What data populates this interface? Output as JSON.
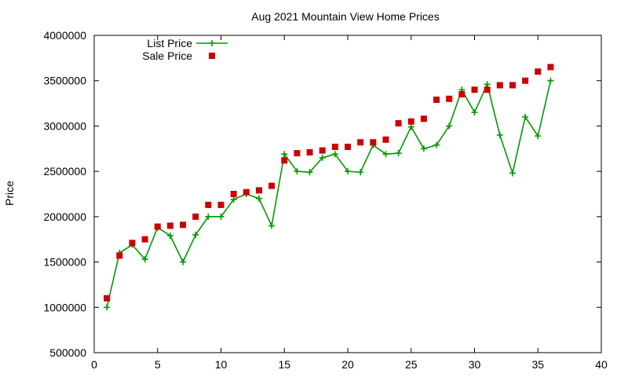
{
  "chart_data": {
    "type": "line",
    "title": "Aug 2021 Mountain View Home Prices",
    "xlabel": "",
    "ylabel": "Price",
    "xlim": [
      0,
      40
    ],
    "ylim": [
      500000,
      4000000
    ],
    "xticks": [
      0,
      5,
      10,
      15,
      20,
      25,
      30,
      35,
      40
    ],
    "yticks": [
      500000,
      1000000,
      1500000,
      2000000,
      2500000,
      3000000,
      3500000,
      4000000
    ],
    "grid": false,
    "legend_position": "top-left",
    "series": [
      {
        "name": "List Price",
        "style": "line-plus",
        "color": "#009900",
        "x": [
          1,
          2,
          3,
          4,
          5,
          6,
          7,
          8,
          9,
          10,
          11,
          12,
          13,
          14,
          15,
          16,
          17,
          18,
          19,
          20,
          21,
          22,
          23,
          24,
          25,
          26,
          27,
          28,
          29,
          30,
          31,
          32,
          33,
          34,
          35,
          36
        ],
        "y": [
          1000000,
          1600000,
          1690000,
          1530000,
          1880000,
          1790000,
          1500000,
          1800000,
          2000000,
          2000000,
          2190000,
          2250000,
          2200000,
          1900000,
          2690000,
          2500000,
          2490000,
          2650000,
          2690000,
          2500000,
          2490000,
          2790000,
          2690000,
          2700000,
          2990000,
          2750000,
          2790000,
          3000000,
          3400000,
          3150000,
          3460000,
          2900000,
          2480000,
          3100000,
          2890000,
          3500000
        ]
      },
      {
        "name": "Sale Price",
        "style": "square-points",
        "color": "#cc0000",
        "x": [
          1,
          2,
          3,
          4,
          5,
          6,
          7,
          8,
          9,
          10,
          11,
          12,
          13,
          14,
          15,
          16,
          17,
          18,
          19,
          20,
          21,
          22,
          23,
          24,
          25,
          26,
          27,
          28,
          29,
          30,
          31,
          32,
          33,
          34,
          35,
          36
        ],
        "y": [
          1100000,
          1570000,
          1710000,
          1750000,
          1890000,
          1900000,
          1910000,
          2000000,
          2130000,
          2130000,
          2250000,
          2270000,
          2290000,
          2340000,
          2620000,
          2700000,
          2710000,
          2730000,
          2770000,
          2770000,
          2820000,
          2820000,
          2850000,
          3030000,
          3050000,
          3080000,
          3290000,
          3300000,
          3350000,
          3400000,
          3400000,
          3450000,
          3450000,
          3500000,
          3600000,
          3650000
        ]
      }
    ]
  }
}
